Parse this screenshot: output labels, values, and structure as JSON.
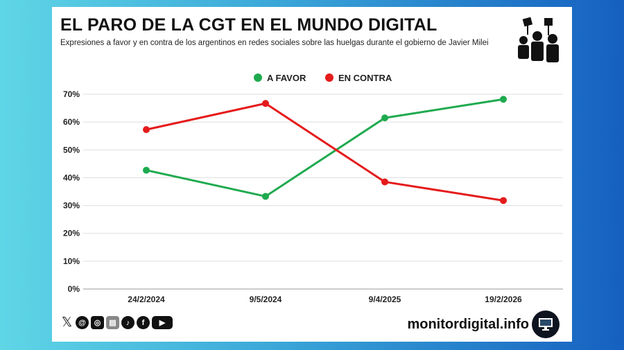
{
  "header": {
    "title": "EL PARO DE LA CGT EN EL MUNDO DIGITAL",
    "subtitle": "Expresiones a favor y en contra de los argentinos en redes sociales sobre las huelgas durante el gobierno de Javier Milei"
  },
  "footer": {
    "site": "monitordigital.info",
    "social_icons": [
      "x-icon",
      "threads-icon",
      "instagram-icon",
      "newsletter-icon",
      "tiktok-icon",
      "facebook-icon",
      "youtube-icon"
    ]
  },
  "chart_data": {
    "type": "line",
    "title": "EL PARO DE LA CGT EN EL MUNDO DIGITAL",
    "categories": [
      "24/2/2024",
      "9/5/2024",
      "9/4/2025",
      "19/2/2026"
    ],
    "series": [
      {
        "name": "A FAVOR",
        "color": "#1faa4f",
        "values": [
          42.7,
          33.3,
          61.5,
          68.2
        ]
      },
      {
        "name": "EN CONTRA",
        "color": "#e51b1b",
        "values": [
          57.3,
          66.7,
          38.5,
          31.8
        ]
      }
    ],
    "yticks": [
      "0%",
      "10%",
      "20%",
      "30%",
      "40%",
      "50%",
      "60%",
      "70%"
    ],
    "ylim": [
      0,
      70
    ],
    "grid": true,
    "legend": "top-center"
  }
}
